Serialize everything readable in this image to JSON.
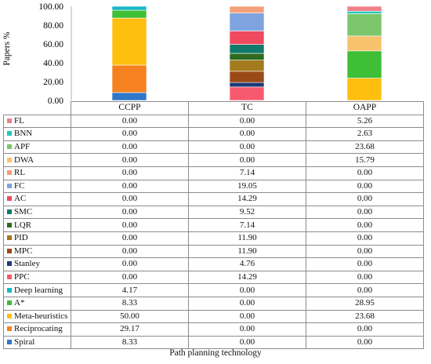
{
  "chart_data": {
    "type": "bar",
    "stacked": true,
    "xlabel": "Path planning technology",
    "ylabel": "Papers %",
    "ylim": [
      0,
      100
    ],
    "yticks": [
      "0.00",
      "20.00",
      "40.00",
      "60.00",
      "80.00",
      "100.00"
    ],
    "categories": [
      "CCPP",
      "TC",
      "OAPP"
    ],
    "grid": false,
    "legend": "in data table",
    "series": [
      {
        "name": "FL",
        "color": "#f07f8a",
        "values": [
          0.0,
          0.0,
          5.26
        ],
        "labels": [
          "0.00",
          "0.00",
          "5.26"
        ]
      },
      {
        "name": "BNN",
        "color": "#23c7b9",
        "values": [
          0.0,
          0.0,
          2.63
        ],
        "labels": [
          "0.00",
          "0.00",
          "2.63"
        ]
      },
      {
        "name": "APF",
        "color": "#7cc66b",
        "values": [
          0.0,
          0.0,
          23.68
        ],
        "labels": [
          "0.00",
          "0.00",
          "23.68"
        ]
      },
      {
        "name": "DWA",
        "color": "#f7c26b",
        "values": [
          0.0,
          0.0,
          15.79
        ],
        "labels": [
          "0.00",
          "0.00",
          "15.79"
        ]
      },
      {
        "name": "RL",
        "color": "#f4a07a",
        "values": [
          0.0,
          7.14,
          0.0
        ],
        "labels": [
          "0.00",
          "7.14",
          "0.00"
        ]
      },
      {
        "name": "FC",
        "color": "#7fa3df",
        "values": [
          0.0,
          19.05,
          0.0
        ],
        "labels": [
          "0.00",
          "19.05",
          "0.00"
        ]
      },
      {
        "name": "AC",
        "color": "#ef4a5f",
        "values": [
          0.0,
          14.29,
          0.0
        ],
        "labels": [
          "0.00",
          "14.29",
          "0.00"
        ]
      },
      {
        "name": "SMC",
        "color": "#127a6b",
        "values": [
          0.0,
          9.52,
          0.0
        ],
        "labels": [
          "0.00",
          "9.52",
          "0.00"
        ]
      },
      {
        "name": "LQR",
        "color": "#2f6b1e",
        "values": [
          0.0,
          7.14,
          0.0
        ],
        "labels": [
          "0.00",
          "7.14",
          "0.00"
        ]
      },
      {
        "name": "PID",
        "color": "#a37a1c",
        "values": [
          0.0,
          11.9,
          0.0
        ],
        "labels": [
          "0.00",
          "11.90",
          "0.00"
        ]
      },
      {
        "name": "MPC",
        "color": "#9a4a17",
        "values": [
          0.0,
          11.9,
          0.0
        ],
        "labels": [
          "0.00",
          "11.90",
          "0.00"
        ]
      },
      {
        "name": "Stanley",
        "color": "#1f3a78",
        "values": [
          0.0,
          4.76,
          0.0
        ],
        "labels": [
          "0.00",
          "4.76",
          "0.00"
        ]
      },
      {
        "name": "PPC",
        "color": "#f75a6e",
        "values": [
          0.0,
          14.29,
          0.0
        ],
        "labels": [
          "0.00",
          "14.29",
          "0.00"
        ]
      },
      {
        "name": "Deep learning",
        "color": "#17b8c4",
        "values": [
          4.17,
          0.0,
          0.0
        ],
        "labels": [
          "4.17",
          "0.00",
          "0.00"
        ]
      },
      {
        "name": "A*",
        "color": "#3fbf35",
        "values": [
          8.33,
          0.0,
          28.95
        ],
        "labels": [
          "8.33",
          "0.00",
          "28.95"
        ]
      },
      {
        "name": "Meta-heuristics",
        "color": "#ffbf0f",
        "values": [
          50.0,
          0.0,
          23.68
        ],
        "labels": [
          "50.00",
          "0.00",
          "23.68"
        ]
      },
      {
        "name": "Reciprocating",
        "color": "#f5821f",
        "values": [
          29.17,
          0.0,
          0.0
        ],
        "labels": [
          "29.17",
          "0.00",
          "0.00"
        ]
      },
      {
        "name": "Spiral",
        "color": "#2f77c8",
        "values": [
          8.33,
          0.0,
          0.0
        ],
        "labels": [
          "8.33",
          "0.00",
          "0.00"
        ]
      }
    ]
  }
}
